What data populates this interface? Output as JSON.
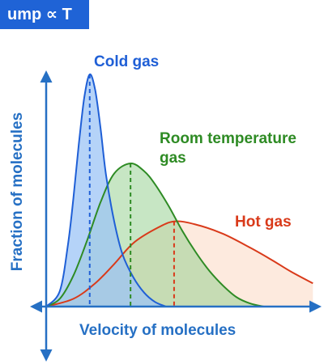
{
  "badge": "ump ∝ T",
  "colors": {
    "axis": "#2670c4",
    "cold": "#1f5fd6",
    "room": "#2e8b24",
    "hot": "#d93a1a"
  },
  "chart_data": {
    "type": "area",
    "title": "",
    "xlabel": "Velocity of molecules",
    "ylabel": "Fraction of molecules",
    "xlim": [
      0,
      10
    ],
    "ylim": [
      -0.04,
      0.33
    ],
    "grid": false,
    "legend": "none",
    "series": [
      {
        "name": "Cold gas",
        "peak_x": 1.6,
        "peak_y": 0.3,
        "tail_y": 0.0,
        "x": [
          0,
          0.5,
          0.8,
          1.0,
          1.2,
          1.4,
          1.6,
          1.8,
          2.0,
          2.2,
          2.5,
          2.8,
          3.2,
          3.6,
          4.0,
          4.4
        ],
        "values": [
          0,
          0.02,
          0.08,
          0.14,
          0.21,
          0.27,
          0.3,
          0.28,
          0.23,
          0.17,
          0.11,
          0.068,
          0.038,
          0.018,
          0.006,
          0.0
        ]
      },
      {
        "name": "Room temperature gas",
        "peak_x": 3.1,
        "peak_y": 0.185,
        "tail_y": 0.0,
        "x": [
          0,
          0.5,
          1.0,
          1.5,
          2.0,
          2.5,
          3.1,
          3.6,
          4.0,
          4.5,
          5.0,
          5.5,
          6.0,
          6.5,
          7.0,
          7.5,
          8.0
        ],
        "values": [
          0,
          0.01,
          0.04,
          0.085,
          0.135,
          0.172,
          0.185,
          0.175,
          0.158,
          0.13,
          0.098,
          0.07,
          0.046,
          0.027,
          0.012,
          0.004,
          0.0
        ]
      },
      {
        "name": "Hot gas",
        "peak_x": 4.7,
        "peak_y": 0.11,
        "tail_y": 0.03,
        "x": [
          0,
          1.0,
          1.8,
          2.5,
          3.2,
          4.0,
          4.7,
          5.5,
          6.5,
          7.5,
          8.3,
          9.0,
          9.8
        ],
        "values": [
          0,
          0.01,
          0.03,
          0.055,
          0.082,
          0.1,
          0.11,
          0.106,
          0.094,
          0.076,
          0.06,
          0.045,
          0.03
        ]
      }
    ]
  }
}
